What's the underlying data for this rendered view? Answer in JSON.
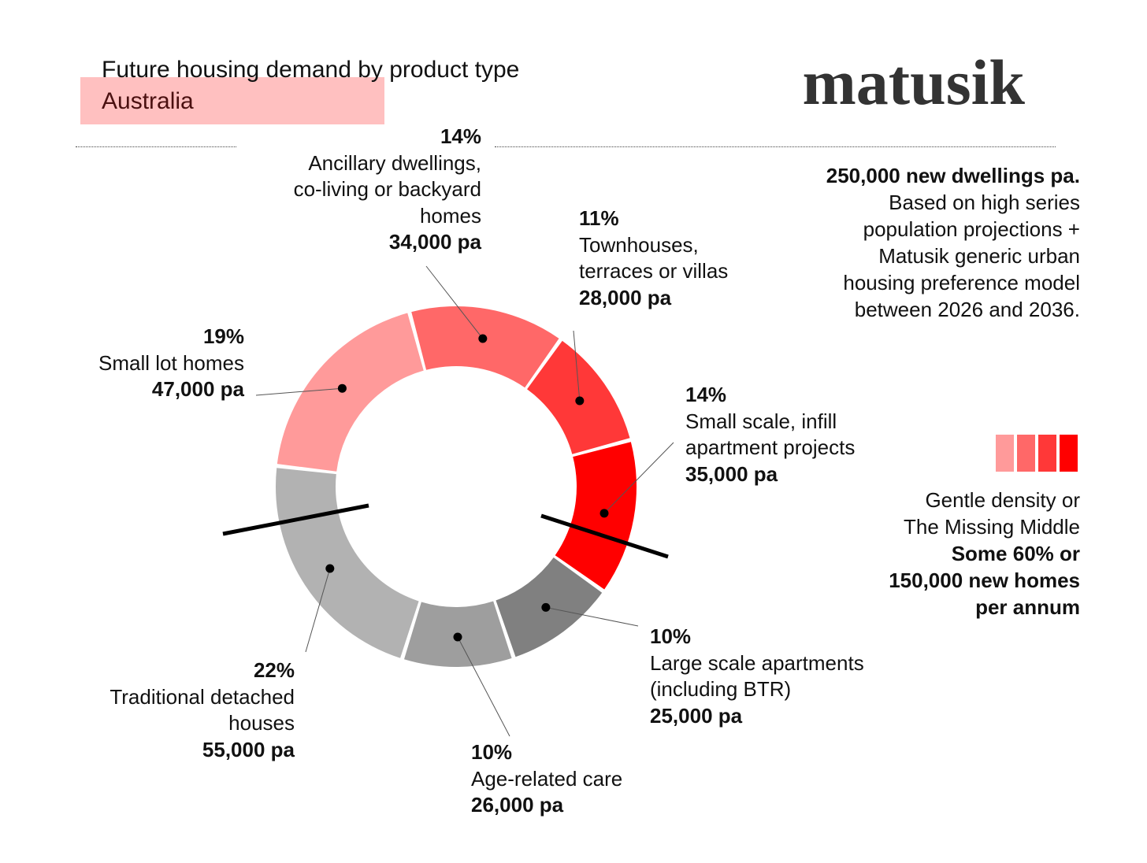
{
  "header": {
    "title": "Future housing demand by product type",
    "subtitle": "Australia",
    "brand": "matusik"
  },
  "note": {
    "lead": "250,000 new dwellings pa.",
    "lines": [
      "Based on high series",
      "population projections +",
      "Matusik generic urban",
      "housing preference model",
      "between 2026 and 2036."
    ]
  },
  "legend": {
    "swatch_colors": [
      "#ff9a9a",
      "#ff6868",
      "#ff3838",
      "#ff0000"
    ],
    "line1": "Gentle density or",
    "line2": "The Missing Middle",
    "line3": "Some 60% or",
    "line4": "150,000 new homes",
    "line5": "per annum"
  },
  "chart_data": {
    "type": "pie",
    "donut": true,
    "title": "Future housing demand by product type",
    "subtitle": "Australia",
    "segments": [
      {
        "pct_label": "14%",
        "name_lines": [
          "Ancillary dwellings,",
          "co-living or backyard",
          "homes"
        ],
        "value_label": "34,000 pa",
        "percent": 14,
        "value": 34000,
        "color": "#ff6868"
      },
      {
        "pct_label": "11%",
        "name_lines": [
          "Townhouses,",
          "terraces or villas"
        ],
        "value_label": "28,000 pa",
        "percent": 11,
        "value": 28000,
        "color": "#ff3838"
      },
      {
        "pct_label": "14%",
        "name_lines": [
          "Small scale, infill",
          "apartment projects"
        ],
        "value_label": "35,000 pa",
        "percent": 14,
        "value": 35000,
        "color": "#ff0000"
      },
      {
        "pct_label": "10%",
        "name_lines": [
          "Large scale apartments",
          "(including BTR)"
        ],
        "value_label": "25,000 pa",
        "percent": 10,
        "value": 25000,
        "color": "#808080"
      },
      {
        "pct_label": "10%",
        "name_lines": [
          "Age-related care"
        ],
        "value_label": "26,000 pa",
        "percent": 10,
        "value": 26000,
        "color": "#9e9e9e"
      },
      {
        "pct_label": "22%",
        "name_lines": [
          "Traditional detached",
          "houses"
        ],
        "value_label": "55,000 pa",
        "percent": 22,
        "value": 55000,
        "color": "#b2b2b2"
      },
      {
        "pct_label": "19%",
        "name_lines": [
          "Small lot homes"
        ],
        "value_label": "47,000 pa",
        "percent": 19,
        "value": 47000,
        "color": "#ff9a9a"
      }
    ]
  }
}
